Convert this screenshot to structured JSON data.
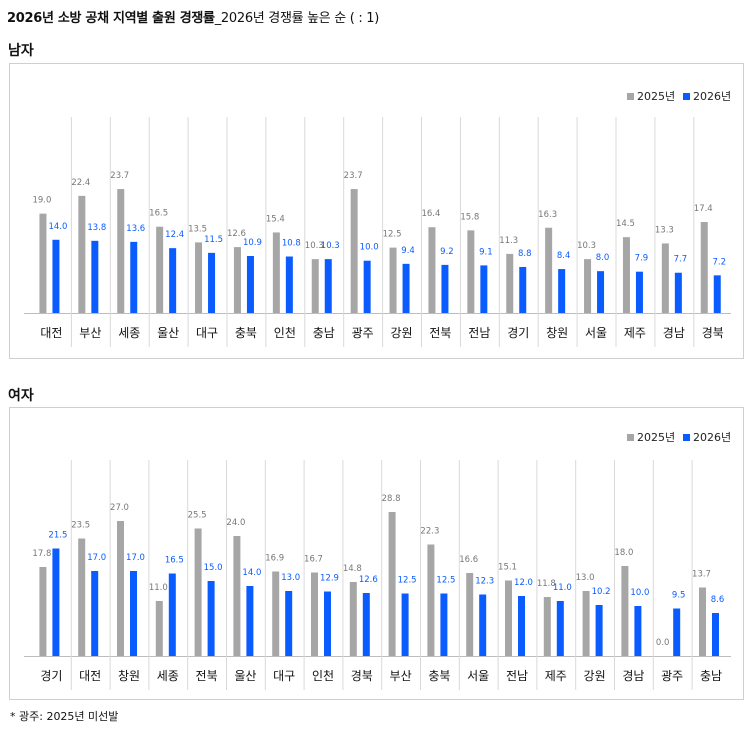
{
  "header": {
    "title_bold": "2026년 소방 공채 지역별 출원 경쟁률",
    "title_rest": "_2026년 경쟁률 높은 순 ( : 1)"
  },
  "footnote": "* 광주: 2025년 미선발",
  "colors": {
    "2025": "#a6a6a6",
    "2026": "#0a5cff"
  },
  "chart_data": [
    {
      "type": "bar",
      "panel_title": "남자",
      "legend": [
        "2025년",
        "2026년"
      ],
      "categories": [
        "대전",
        "부산",
        "세종",
        "울산",
        "대구",
        "충북",
        "인천",
        "충남",
        "광주",
        "강원",
        "전북",
        "전남",
        "경기",
        "창원",
        "서울",
        "제주",
        "경남",
        "경북"
      ],
      "series": [
        {
          "name": "2025년",
          "values": [
            19.0,
            22.4,
            23.7,
            16.5,
            13.5,
            12.6,
            15.4,
            10.3,
            23.7,
            12.5,
            16.4,
            15.8,
            11.3,
            16.3,
            10.3,
            14.5,
            13.3,
            17.4
          ],
          "labels": [
            "19.0",
            "22.4",
            "23.7",
            "16.5",
            "13.5",
            "12.6",
            "15.4",
            "10.3",
            "23.7",
            "12.5",
            "16.4",
            "15.8",
            "11.3",
            "16.3",
            "10.3",
            "14.5",
            "13.3",
            "17.4"
          ]
        },
        {
          "name": "2026년",
          "values": [
            14.0,
            13.8,
            13.6,
            12.4,
            11.5,
            10.9,
            10.8,
            10.3,
            10.0,
            9.4,
            9.2,
            9.1,
            8.8,
            8.4,
            8.0,
            7.9,
            7.7,
            7.2
          ],
          "labels": [
            "14.0",
            "13.8",
            "13.6",
            "12.4",
            "11.5",
            "10.9",
            "10.8",
            "10.3",
            "10.0",
            "9.4",
            "9.2",
            "9.1",
            "8.8",
            "8.4",
            "8.0",
            "7.9",
            "7.7",
            "7.2"
          ]
        }
      ],
      "ylim": [
        0,
        30
      ],
      "grid": false,
      "legend_position": "top-right"
    },
    {
      "type": "bar",
      "panel_title": "여자",
      "legend": [
        "2025년",
        "2026년"
      ],
      "categories": [
        "경기",
        "대전",
        "창원",
        "세종",
        "전북",
        "울산",
        "대구",
        "인천",
        "경북",
        "부산",
        "충북",
        "서울",
        "전남",
        "제주",
        "강원",
        "경남",
        "광주",
        "충남"
      ],
      "series": [
        {
          "name": "2025년",
          "values": [
            17.8,
            23.5,
            27.0,
            11.0,
            25.5,
            24.0,
            16.9,
            16.7,
            14.8,
            28.8,
            22.3,
            16.6,
            15.1,
            11.8,
            13.0,
            18.0,
            0.0,
            13.7
          ],
          "labels": [
            "17.8",
            "23.5",
            "27.0",
            "11.0",
            "25.5",
            "24.0",
            "16.9",
            "16.7",
            "14.8",
            "28.8",
            "22.3",
            "16.6",
            "15.1",
            "11.8",
            "13.0",
            "18.0",
            "0.0",
            "13.7"
          ]
        },
        {
          "name": "2026년",
          "values": [
            21.5,
            17.0,
            17.0,
            16.5,
            15.0,
            14.0,
            13.0,
            12.9,
            12.6,
            12.5,
            12.5,
            12.3,
            12.0,
            11.0,
            10.2,
            10.0,
            9.5,
            8.6
          ],
          "labels": [
            "21.5",
            "17.0",
            "17.0",
            "16.5",
            "15.0",
            "14.0",
            "13.0",
            "12.9",
            "12.6",
            "12.5",
            "12.5",
            "12.3",
            "12.0",
            "11.0",
            "10.2",
            "10.0",
            "9.5",
            "8.6"
          ]
        }
      ],
      "ylim": [
        0,
        36
      ],
      "grid": false,
      "legend_position": "top-right"
    }
  ]
}
